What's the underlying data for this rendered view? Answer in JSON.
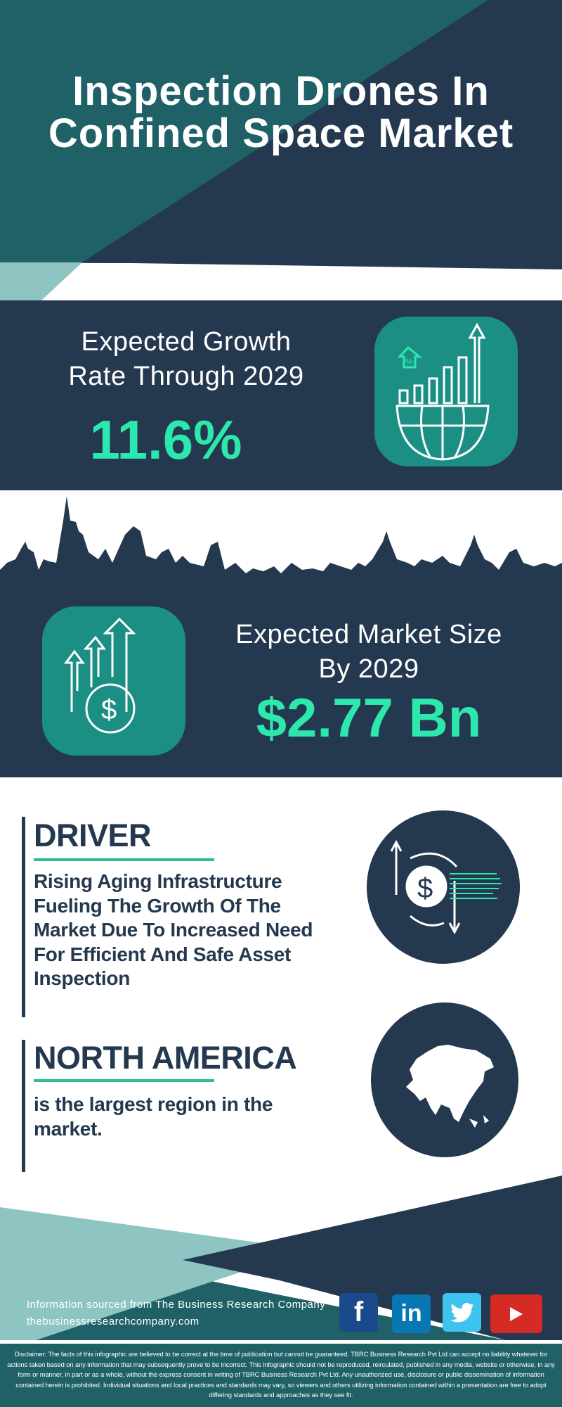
{
  "title": {
    "line1": "Inspection Drones In",
    "line2": "Confined Space Market"
  },
  "growth": {
    "label_line1": "Expected Growth",
    "label_line2": "Rate Through 2029",
    "value": "11.6%",
    "icon": "growth-chart-globe-icon"
  },
  "market": {
    "label_line1": "Expected Market Size",
    "label_line2": "By 2029",
    "value": "$2.77 Bn",
    "icon": "money-growth-arrows-icon"
  },
  "driver": {
    "heading": "DRIVER",
    "text": "Rising Aging Infrastructure Fueling The Growth Of The Market Due To Increased Need For Efficient And Safe Asset Inspection",
    "icon": "dollar-exchange-icon"
  },
  "region": {
    "heading": "NORTH AMERICA",
    "text": "is the largest region in the market.",
    "icon": "world-map-icon"
  },
  "footer": {
    "source": "Information sourced from The Business Research Company",
    "website": "thebusinessresearchcompany.com",
    "social": [
      "facebook",
      "linkedin",
      "twitter",
      "youtube"
    ]
  },
  "disclaimer": "Disclaimer: The facts of this infographic are believed to be correct at the time of publication but cannot be guaranteed. TBRC Business Research Pvt Ltd can accept no liability whatever for actions taken based on any information that may subsequently prove to be incorrect. This infographic should not be reproduced, reirculated, published in any media, website or otherwise, in any form or manner, in part or as a whole, without the express consent in writing of TBRC Business Research Pvt Ltd. Any unauthorized use, disclosure or public dissemination of information contained herein is prohibited. Individual situations and local practices and standards may vary, so viewers and others utilizing information contained within a presentation are free to adopt differing standards and approaches as they see fit.",
  "colors": {
    "navy": "#24384f",
    "teal": "#1f6167",
    "light_teal": "#8ec5c2",
    "accent": "#2de8ac",
    "icon_box": "#1b8f84"
  }
}
